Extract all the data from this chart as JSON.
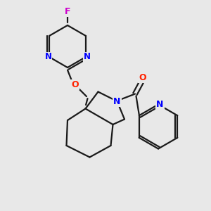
{
  "background_color": "#e8e8e8",
  "bond_color": "#1a1a1a",
  "nitrogen_color": "#0000ff",
  "oxygen_color": "#ff2200",
  "fluorine_color": "#cc00cc",
  "line_width": 1.6,
  "figsize": [
    3.0,
    3.0
  ],
  "dpi": 100,
  "xlim": [
    0,
    10
  ],
  "ylim": [
    0,
    10
  ]
}
